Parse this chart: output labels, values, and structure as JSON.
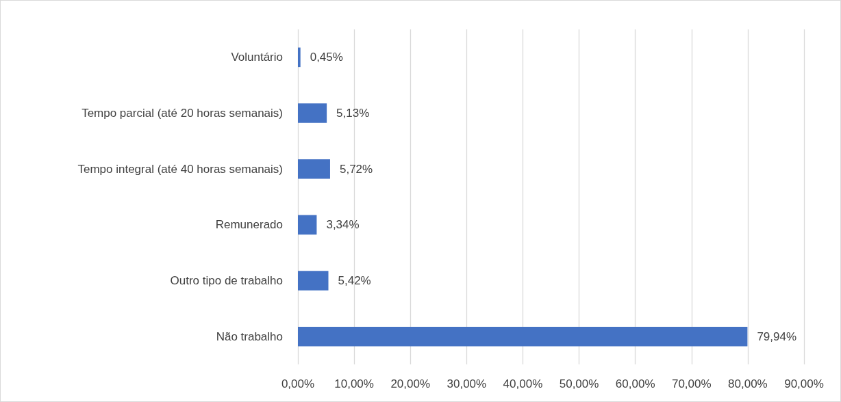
{
  "chart_data": {
    "type": "bar",
    "orientation": "horizontal",
    "categories": [
      "Voluntário",
      "Tempo parcial (até 20 horas semanais)",
      "Tempo integral (até 40 horas semanais)",
      "Remunerado",
      "Outro tipo de trabalho",
      "Não trabalho"
    ],
    "values": [
      0.45,
      5.13,
      5.72,
      3.34,
      5.42,
      79.94
    ],
    "value_labels": [
      "0,45%",
      "5,13%",
      "5,72%",
      "3,34%",
      "5,42%",
      "79,94%"
    ],
    "color": "#4472c4",
    "xlim": [
      0,
      90
    ],
    "xticks": [
      {
        "value": 0,
        "label": "0,00%"
      },
      {
        "value": 10,
        "label": "10,00%"
      },
      {
        "value": 20,
        "label": "20,00%"
      },
      {
        "value": 30,
        "label": "30,00%"
      },
      {
        "value": 40,
        "label": "40,00%"
      },
      {
        "value": 50,
        "label": "50,00%"
      },
      {
        "value": 60,
        "label": "60,00%"
      },
      {
        "value": 70,
        "label": "70,00%"
      },
      {
        "value": 80,
        "label": "80,00%"
      },
      {
        "value": 90,
        "label": "90,00%"
      }
    ],
    "grid": "x"
  }
}
